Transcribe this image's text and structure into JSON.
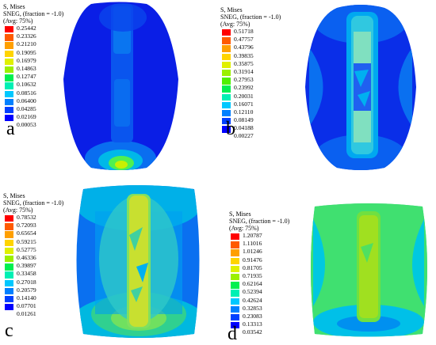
{
  "panels": [
    {
      "id": "a",
      "letter": "a",
      "legend": {
        "title": "S, Mises",
        "subtitle": "SNEG, (fraction = -1.0)",
        "avg": "(Avg: 75%)",
        "values": [
          "0.25442",
          "0.23326",
          "0.21210",
          "0.19095",
          "0.16979",
          "0.14863",
          "0.12747",
          "0.10632",
          "0.08516",
          "0.06400",
          "0.04285",
          "0.02169",
          "0.00053"
        ]
      }
    },
    {
      "id": "b",
      "letter": "b",
      "legend": {
        "title": "S, Mises",
        "subtitle": "SNEG, (fraction = -1.0)",
        "avg": "(Avg: 75%)",
        "values": [
          "0.51718",
          "0.47757",
          "0.43796",
          "0.39835",
          "0.35875",
          "0.31914",
          "0.27953",
          "0.23992",
          "0.20031",
          "0.16071",
          "0.12110",
          "0.08149",
          "0.04188",
          "0.00227"
        ]
      }
    },
    {
      "id": "c",
      "letter": "c",
      "legend": {
        "title": "S, Mises",
        "subtitle": "SNEG, (fraction = -1.0)",
        "avg": "(Avg: 75%)",
        "values": [
          "0.78532",
          "0.72093",
          "0.65654",
          "0.59215",
          "0.52775",
          "0.46336",
          "0.39897",
          "0.33458",
          "0.27018",
          "0.20579",
          "0.14140",
          "0.07701",
          "0.01261"
        ]
      }
    },
    {
      "id": "d",
      "letter": "d",
      "legend": {
        "title": "S, Mises",
        "subtitle": "SNEG, (fraction = -1.0)",
        "avg": "(Avg: 75%)",
        "values": [
          "1.20787",
          "1.11016",
          "1.01246",
          "0.91476",
          "0.81705",
          "0.71935",
          "0.62164",
          "0.52394",
          "0.42624",
          "0.32853",
          "0.23083",
          "0.13313",
          "0.03542"
        ]
      }
    }
  ],
  "colorScale": [
    "#ff0000",
    "#ff5a00",
    "#ff9f00",
    "#ffd400",
    "#e0f000",
    "#9bf000",
    "#4ff000",
    "#00f050",
    "#00f0b4",
    "#00c8ff",
    "#0080ff",
    "#0040ff",
    "#0000ff"
  ]
}
